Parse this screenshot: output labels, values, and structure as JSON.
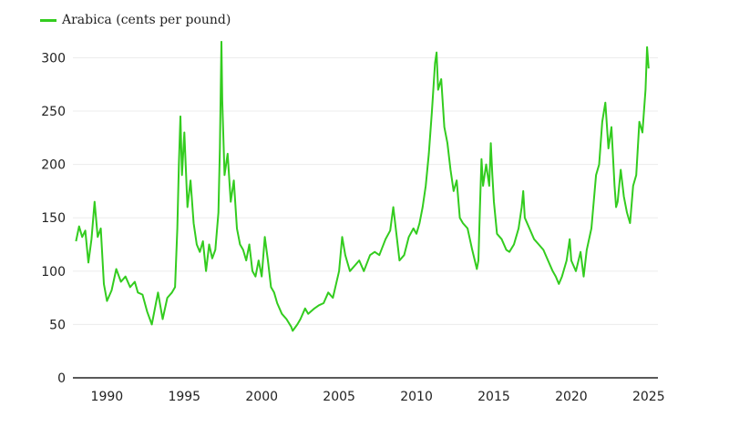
{
  "chart_data": {
    "type": "line",
    "legend": "top-left",
    "grid": true,
    "series": [
      {
        "name": "Arabica (cents per pound)",
        "color": "#33cc1f",
        "points": [
          [
            1988.0,
            128
          ],
          [
            1988.2,
            142
          ],
          [
            1988.4,
            132
          ],
          [
            1988.6,
            138
          ],
          [
            1988.8,
            108
          ],
          [
            1989.0,
            130
          ],
          [
            1989.2,
            165
          ],
          [
            1989.4,
            132
          ],
          [
            1989.6,
            140
          ],
          [
            1989.8,
            88
          ],
          [
            1990.0,
            72
          ],
          [
            1990.3,
            82
          ],
          [
            1990.6,
            102
          ],
          [
            1990.9,
            90
          ],
          [
            1991.2,
            95
          ],
          [
            1991.5,
            85
          ],
          [
            1991.8,
            90
          ],
          [
            1992.0,
            80
          ],
          [
            1992.3,
            78
          ],
          [
            1992.6,
            62
          ],
          [
            1992.9,
            50
          ],
          [
            1993.1,
            65
          ],
          [
            1993.3,
            80
          ],
          [
            1993.6,
            55
          ],
          [
            1993.9,
            75
          ],
          [
            1994.2,
            80
          ],
          [
            1994.4,
            85
          ],
          [
            1994.55,
            140
          ],
          [
            1994.65,
            200
          ],
          [
            1994.75,
            245
          ],
          [
            1994.85,
            190
          ],
          [
            1995.0,
            230
          ],
          [
            1995.2,
            160
          ],
          [
            1995.4,
            185
          ],
          [
            1995.6,
            145
          ],
          [
            1995.8,
            125
          ],
          [
            1996.0,
            118
          ],
          [
            1996.2,
            128
          ],
          [
            1996.4,
            100
          ],
          [
            1996.6,
            125
          ],
          [
            1996.8,
            112
          ],
          [
            1997.0,
            120
          ],
          [
            1997.2,
            155
          ],
          [
            1997.3,
            215
          ],
          [
            1997.4,
            315
          ],
          [
            1997.45,
            260
          ],
          [
            1997.6,
            190
          ],
          [
            1997.8,
            210
          ],
          [
            1998.0,
            165
          ],
          [
            1998.2,
            185
          ],
          [
            1998.4,
            140
          ],
          [
            1998.6,
            125
          ],
          [
            1998.8,
            120
          ],
          [
            1999.0,
            110
          ],
          [
            1999.2,
            125
          ],
          [
            1999.4,
            100
          ],
          [
            1999.6,
            95
          ],
          [
            1999.8,
            110
          ],
          [
            2000.0,
            95
          ],
          [
            2000.2,
            132
          ],
          [
            2000.4,
            110
          ],
          [
            2000.6,
            85
          ],
          [
            2000.8,
            80
          ],
          [
            2001.0,
            70
          ],
          [
            2001.3,
            60
          ],
          [
            2001.6,
            55
          ],
          [
            2001.9,
            48
          ],
          [
            2002.0,
            44
          ],
          [
            2002.3,
            50
          ],
          [
            2002.5,
            55
          ],
          [
            2002.8,
            65
          ],
          [
            2003.0,
            60
          ],
          [
            2003.4,
            65
          ],
          [
            2003.7,
            68
          ],
          [
            2004.0,
            70
          ],
          [
            2004.3,
            80
          ],
          [
            2004.6,
            75
          ],
          [
            2005.0,
            100
          ],
          [
            2005.2,
            132
          ],
          [
            2005.4,
            115
          ],
          [
            2005.7,
            100
          ],
          [
            2006.0,
            105
          ],
          [
            2006.3,
            110
          ],
          [
            2006.6,
            100
          ],
          [
            2007.0,
            115
          ],
          [
            2007.3,
            118
          ],
          [
            2007.6,
            115
          ],
          [
            2008.0,
            130
          ],
          [
            2008.3,
            138
          ],
          [
            2008.5,
            160
          ],
          [
            2008.7,
            135
          ],
          [
            2008.9,
            110
          ],
          [
            2009.2,
            115
          ],
          [
            2009.5,
            132
          ],
          [
            2009.8,
            140
          ],
          [
            2010.0,
            135
          ],
          [
            2010.2,
            145
          ],
          [
            2010.4,
            160
          ],
          [
            2010.6,
            180
          ],
          [
            2010.8,
            210
          ],
          [
            2011.0,
            250
          ],
          [
            2011.2,
            295
          ],
          [
            2011.3,
            305
          ],
          [
            2011.4,
            270
          ],
          [
            2011.6,
            280
          ],
          [
            2011.8,
            235
          ],
          [
            2012.0,
            220
          ],
          [
            2012.2,
            195
          ],
          [
            2012.4,
            175
          ],
          [
            2012.6,
            185
          ],
          [
            2012.8,
            150
          ],
          [
            2013.0,
            145
          ],
          [
            2013.3,
            140
          ],
          [
            2013.6,
            120
          ],
          [
            2013.9,
            102
          ],
          [
            2014.0,
            110
          ],
          [
            2014.1,
            160
          ],
          [
            2014.2,
            205
          ],
          [
            2014.3,
            180
          ],
          [
            2014.5,
            200
          ],
          [
            2014.7,
            180
          ],
          [
            2014.8,
            220
          ],
          [
            2014.9,
            190
          ],
          [
            2015.0,
            165
          ],
          [
            2015.2,
            135
          ],
          [
            2015.5,
            130
          ],
          [
            2015.8,
            120
          ],
          [
            2016.0,
            118
          ],
          [
            2016.3,
            125
          ],
          [
            2016.6,
            140
          ],
          [
            2016.8,
            160
          ],
          [
            2016.9,
            175
          ],
          [
            2017.0,
            150
          ],
          [
            2017.3,
            140
          ],
          [
            2017.6,
            130
          ],
          [
            2017.9,
            125
          ],
          [
            2018.2,
            120
          ],
          [
            2018.5,
            110
          ],
          [
            2018.8,
            100
          ],
          [
            2019.0,
            95
          ],
          [
            2019.2,
            88
          ],
          [
            2019.4,
            95
          ],
          [
            2019.7,
            110
          ],
          [
            2019.9,
            130
          ],
          [
            2020.0,
            110
          ],
          [
            2020.3,
            100
          ],
          [
            2020.6,
            118
          ],
          [
            2020.8,
            95
          ],
          [
            2021.0,
            120
          ],
          [
            2021.3,
            140
          ],
          [
            2021.6,
            190
          ],
          [
            2021.8,
            200
          ],
          [
            2022.0,
            240
          ],
          [
            2022.2,
            258
          ],
          [
            2022.4,
            215
          ],
          [
            2022.6,
            235
          ],
          [
            2022.8,
            180
          ],
          [
            2022.9,
            160
          ],
          [
            2023.0,
            165
          ],
          [
            2023.2,
            195
          ],
          [
            2023.4,
            170
          ],
          [
            2023.6,
            155
          ],
          [
            2023.8,
            145
          ],
          [
            2024.0,
            180
          ],
          [
            2024.2,
            190
          ],
          [
            2024.4,
            240
          ],
          [
            2024.6,
            230
          ],
          [
            2024.8,
            270
          ],
          [
            2024.9,
            310
          ],
          [
            2025.0,
            290
          ]
        ]
      }
    ],
    "x_ticks": [
      1990,
      1995,
      2000,
      2005,
      2010,
      2015,
      2020,
      2025
    ],
    "y_ticks": [
      0,
      50,
      100,
      150,
      200,
      250,
      300
    ],
    "xlim": [
      1987.8,
      2025.6
    ],
    "ylim": [
      0,
      320
    ]
  }
}
